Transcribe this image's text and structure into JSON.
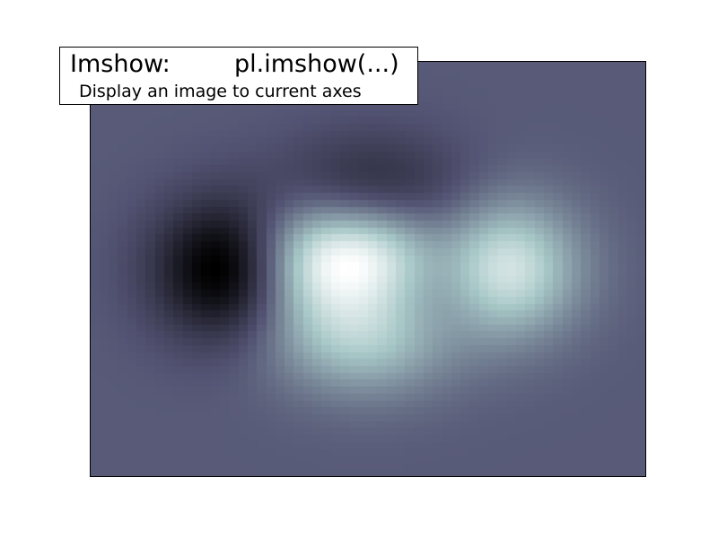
{
  "figure": {
    "title": "Imshow:",
    "command": "pl.imshow(...)",
    "subtitle": "Display an image to current axes"
  },
  "chart_data": {
    "type": "heatmap",
    "title": "Imshow:",
    "command": "pl.imshow(...)",
    "subtitle": "Display an image to current axes",
    "colormap": "bone",
    "interpolation": "nearest",
    "xlabel": "",
    "ylabel": "",
    "grid": false,
    "ticks": false,
    "function": "z = (1 - x/2 + x^5 + y^3) * exp(-x^2 - y^2)",
    "x_range": [
      -3,
      3
    ],
    "y_range": [
      -3,
      3
    ],
    "grid_size": [
      60,
      60
    ],
    "colors": {
      "background": "#ffffff",
      "frame": "#000000"
    }
  }
}
